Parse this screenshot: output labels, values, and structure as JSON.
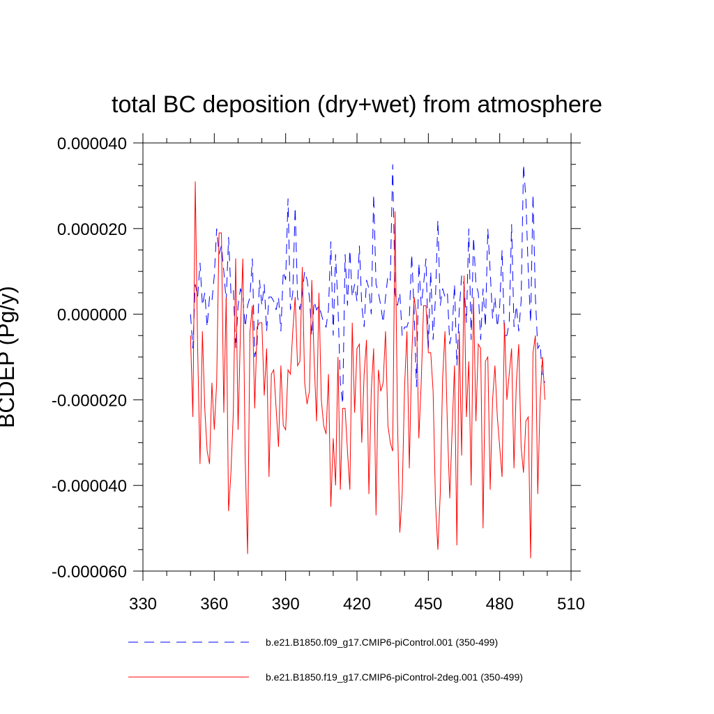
{
  "chart_data": {
    "type": "line",
    "title": "total BC deposition (dry+wet) from atmosphere",
    "xlabel": "",
    "ylabel": "BCDEP  (Pg/y)",
    "xlim": [
      330,
      510
    ],
    "ylim": [
      -6e-05,
      4e-05
    ],
    "xticks": [
      330,
      360,
      390,
      420,
      450,
      480,
      510
    ],
    "yticks": [
      -6e-05,
      -4e-05,
      -2e-05,
      0.0,
      2e-05,
      4e-05
    ],
    "xtick_labels": [
      "330",
      "360",
      "390",
      "420",
      "450",
      "480",
      "510"
    ],
    "ytick_labels": [
      "-0.000060",
      "-0.000040",
      "-0.000020",
      "0.000000",
      "0.000020",
      "0.000040"
    ],
    "legend_position": "bottom",
    "series": [
      {
        "name": "b.e21.B1850.f09_g17.CMIP6-piControl.001 (350-499)",
        "color": "#0000ff",
        "style": "dashed",
        "x_start": 350,
        "values": [
          0.0,
          -8e-06,
          7e-06,
          4e-06,
          1.2e-05,
          2e-06,
          5e-06,
          -3e-06,
          4e-06,
          3e-06,
          9e-06,
          2e-05,
          1.4e-05,
          1.6e-05,
          1e-05,
          3e-06,
          1.8e-05,
          5e-06,
          6e-06,
          -8e-06,
          2e-06,
          6e-06,
          4e-06,
          -3e-06,
          2e-06,
          4e-06,
          1.3e-05,
          -1e-05,
          -7e-06,
          8e-06,
          2e-06,
          7e-06,
          -4e-06,
          4e-06,
          4e-06,
          3e-06,
          1e-06,
          4e-06,
          -4e-06,
          1e-05,
          8e-06,
          2.7e-05,
          1e-06,
          5e-06,
          2.5e-05,
          4e-06,
          1e-06,
          5e-06,
          1e-05,
          8e-06,
          4e-06,
          -5e-06,
          3e-06,
          1e-06,
          2e-06,
          0.0,
          -2e-06,
          -3e-06,
          1e-06,
          1.7e-05,
          -5e-06,
          1.4e-05,
          2e-06,
          -1.6e-05,
          -2.1e-05,
          1.4e-05,
          2e-06,
          1.5e-05,
          4e-06,
          7e-06,
          3e-06,
          1.6e-05,
          2e-06,
          -3e-06,
          8e-06,
          6e-06,
          0.0,
          2.8e-05,
          7e-06,
          5e-06,
          2e-06,
          -2e-06,
          4e-06,
          9e-06,
          8e-06,
          3.5e-05,
          5e-06,
          2e-06,
          5e-06,
          -5e-06,
          -3e-06,
          -3e-06,
          -1e-06,
          1.4e-05,
          1e-06,
          -1.7e-05,
          1.2e-05,
          2e-06,
          7e-06,
          1.3e-05,
          -8e-06,
          1e-05,
          -6e-06,
          4e-06,
          2.2e-05,
          2e-06,
          6e-06,
          4e-06,
          5e-06,
          -7e-06,
          -4e-06,
          7e-06,
          -1.2e-05,
          1e-06,
          9e-06,
          7e-06,
          -2e-06,
          2e-05,
          -6e-06,
          1.8e-05,
          7e-06,
          5e-06,
          -6e-06,
          6e-06,
          -3e-06,
          2e-05,
          1e-05,
          -1e-06,
          4e-06,
          -3e-06,
          2e-06,
          1.5e-05,
          -5e-06,
          -5e-06,
          -2e-06,
          2.1e-05,
          -3e-06,
          2e-06,
          -4e-06,
          3e-06,
          3.5e-05,
          2.7e-05,
          1e-05,
          -2e-06,
          2.8e-05,
          4e-06,
          -8e-06,
          -7e-06,
          -1.5e-05,
          -1.6e-05
        ]
      },
      {
        "name": "b.e21.B1850.f19_g17.CMIP6-piControl-2deg.001 (350-499)",
        "color": "#ff0000",
        "style": "solid",
        "x_start": 350,
        "values": [
          -5e-06,
          -2.4e-05,
          3.1e-05,
          -8e-06,
          -3.5e-05,
          -4e-06,
          -2.2e-05,
          -3.2e-05,
          -3.5e-05,
          -1.6e-05,
          -2.7e-05,
          -1.6e-05,
          1.9e-05,
          1.9e-05,
          -2.3e-05,
          4e-06,
          -4.6e-05,
          -3.7e-05,
          -2.3e-05,
          1.3e-05,
          -2.7e-05,
          -4e-06,
          1.3e-05,
          -3.4e-05,
          -5.6e-05,
          -4e-06,
          2e-06,
          -2.2e-05,
          -3e-06,
          -2e-06,
          -2e-06,
          -1.9e-05,
          -8e-06,
          -3.8e-05,
          -1.4e-05,
          -1.3e-05,
          -2.2e-05,
          -3.1e-05,
          -1.2e-05,
          -2.6e-05,
          -2.7e-05,
          -1.3e-05,
          -1.4e-05,
          -4e-06,
          4e-06,
          -1.2e-05,
          -1.1e-05,
          1.1e-05,
          -1.6e-05,
          -2.1e-05,
          -1.8e-05,
          8e-06,
          -1.1e-05,
          -2.5e-05,
          5e-06,
          -2e-05,
          -2.6e-05,
          -2.8e-05,
          -1.4e-05,
          -4.5e-05,
          -2.9e-05,
          -4e-05,
          -1e-05,
          -4.1e-05,
          -2.2e-05,
          -2.2e-05,
          -3.2e-05,
          -4.1e-05,
          -2e-06,
          -2.3e-05,
          -8e-06,
          -7e-06,
          -3e-05,
          -1.4e-05,
          -6e-06,
          -4.2e-05,
          -1.8e-05,
          -8e-06,
          -4.7e-05,
          -1.3e-05,
          -1.8e-05,
          -1.6e-05,
          -4e-06,
          -2.6e-05,
          -3e-05,
          -3.2e-05,
          2.4e-05,
          -2.4e-05,
          -5.1e-05,
          -4.2e-05,
          -1.7e-05,
          -4e-06,
          -3.6e-05,
          -1e-05,
          4e-06,
          0.0,
          -2.9e-05,
          -1.6e-05,
          2e-06,
          2e-06,
          -9e-06,
          -9e-06,
          -1.8e-05,
          -4.4e-05,
          -5.5e-05,
          -4.2e-05,
          -1.5e-05,
          -4e-06,
          -2.6e-05,
          -4.3e-05,
          -2.7e-05,
          -1.2e-05,
          -5.4e-05,
          -4e-06,
          -3.3e-05,
          9e-06,
          -2.4e-05,
          -1.1e-05,
          -4e-05,
          4e-06,
          -2.5e-05,
          -7e-06,
          -8e-06,
          -5e-05,
          -1.1e-05,
          -1e-05,
          -4.1e-05,
          -2e-05,
          -1.2e-05,
          -2.4e-05,
          -3.1e-05,
          -3.8e-05,
          -2e-06,
          -2e-05,
          -1.4e-05,
          -8e-06,
          -3.6e-05,
          -1.6e-05,
          -7e-06,
          -3.1e-05,
          -3.7e-05,
          -2.5e-05,
          -2.4e-05,
          -5.7e-05,
          -9e-06,
          -5e-06,
          -4.2e-05,
          -2e-05,
          -1e-05,
          -2e-05
        ]
      }
    ]
  }
}
